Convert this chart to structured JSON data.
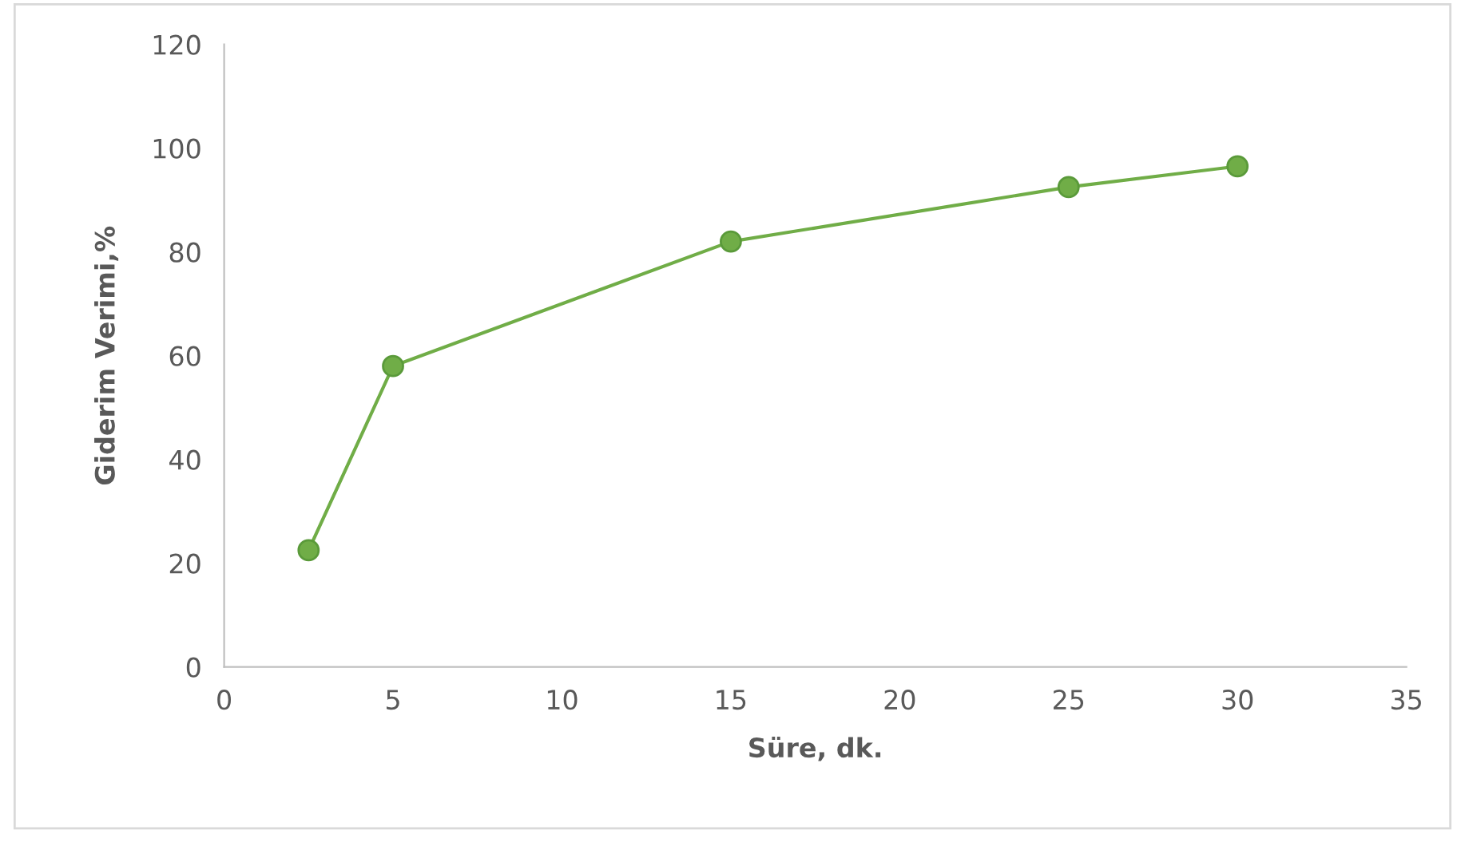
{
  "chart_data": {
    "type": "line",
    "xlabel": "Süre, dk.",
    "ylabel": "Giderim Verimi,%",
    "x": [
      2.5,
      5,
      15,
      25,
      30
    ],
    "series": [
      {
        "color": "#70ad47",
        "values": [
          22.5,
          58,
          82,
          92.5,
          96.5
        ]
      }
    ],
    "xlim": [
      0,
      35
    ],
    "xticks": [
      0,
      5,
      10,
      15,
      20,
      25,
      30,
      35
    ],
    "ylim": [
      0,
      120
    ],
    "yticks": [
      0,
      20,
      40,
      60,
      80,
      100,
      120
    ],
    "grid": false,
    "legend": false,
    "marker": "circle",
    "line_style": "solid"
  }
}
